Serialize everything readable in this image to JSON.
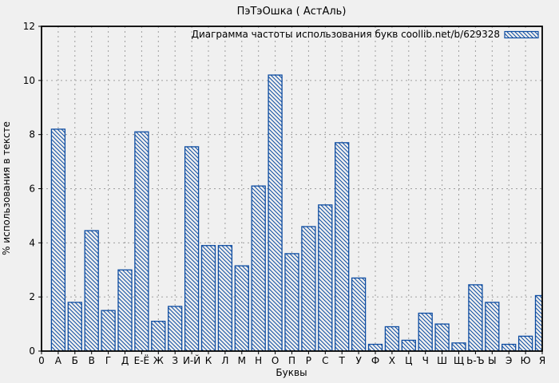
{
  "colors": {
    "bar_outline": "#0d4ca1",
    "background": "#f0f0f0",
    "grid": "#9e9e9e",
    "axis": "#000000",
    "text": "#000000"
  },
  "chart_data": {
    "type": "bar",
    "title": "ПэТэОшка ( АстАль)",
    "legend_label": "Диаграмма частоты использования букв coollib.net/b/629328",
    "legend_position": "top-right-inside",
    "xlabel": "Буквы",
    "ylabel": "% использования в тексте",
    "x_origin_label": "0",
    "categories": [
      "А",
      "Б",
      "В",
      "Г",
      "Д",
      "Е-Ё",
      "Ж",
      "З",
      "И-Й",
      "К",
      "Л",
      "М",
      "Н",
      "О",
      "П",
      "Р",
      "С",
      "Т",
      "У",
      "Ф",
      "Х",
      "Ц",
      "Ч",
      "Ш",
      "Щ",
      "Ь-Ъ",
      "Ы",
      "Э",
      "Ю",
      "Я"
    ],
    "values": [
      8.2,
      1.8,
      4.45,
      1.5,
      3.0,
      8.1,
      1.1,
      1.65,
      7.55,
      3.9,
      3.9,
      3.15,
      6.1,
      10.2,
      3.6,
      4.6,
      5.4,
      7.7,
      2.7,
      0.25,
      0.9,
      0.4,
      1.4,
      1.0,
      0.3,
      2.45,
      1.8,
      0.25,
      0.55,
      2.05
    ],
    "ylim": [
      0,
      12
    ],
    "yticks": [
      0,
      2,
      4,
      6,
      8,
      10,
      12
    ],
    "grid": true,
    "hatch": "diagonal-backslash",
    "bar_color": "#0d4ca1"
  }
}
